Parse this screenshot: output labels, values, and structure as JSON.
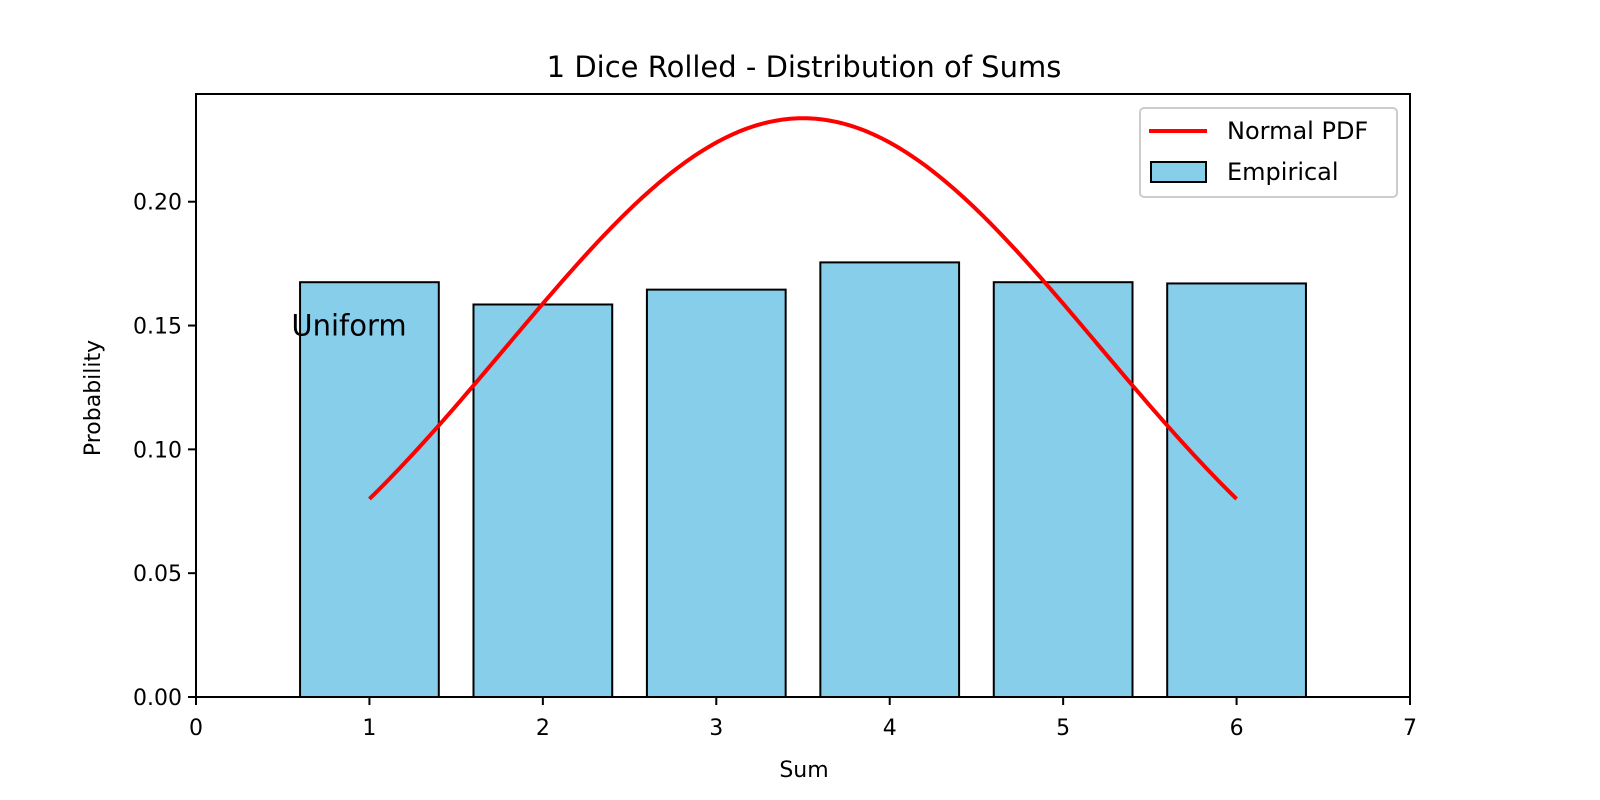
{
  "chart_data": {
    "type": "bar",
    "title": "1 Dice Rolled - Distribution of Sums",
    "xlabel": "Sum",
    "ylabel": "Probability",
    "xlim": [
      0,
      7
    ],
    "ylim": [
      0,
      0.2435
    ],
    "x_ticks": [
      0,
      1,
      2,
      3,
      4,
      5,
      6,
      7
    ],
    "y_ticks": [
      0.0,
      0.05,
      0.1,
      0.15,
      0.2
    ],
    "y_tick_labels": [
      "0.00",
      "0.05",
      "0.10",
      "0.15",
      "0.20"
    ],
    "grid": false,
    "legend_position": "top-right",
    "categories": [
      1,
      2,
      3,
      4,
      5,
      6
    ],
    "bar_width": 0.8,
    "series": [
      {
        "name": "Empirical",
        "type": "bar",
        "color": "#87ceeb",
        "edge_color": "#000000",
        "x": [
          1,
          2,
          3,
          4,
          5,
          6
        ],
        "values": [
          0.1675,
          0.1585,
          0.1645,
          0.1755,
          0.1675,
          0.167
        ]
      },
      {
        "name": "Normal PDF",
        "type": "line",
        "color": "#ff0000",
        "x_range": [
          1,
          6
        ],
        "mean": 3.5,
        "std": 1.707
      }
    ],
    "annotations": [
      {
        "text": "Uniform",
        "x": 0.55,
        "y": 0.15
      }
    ]
  }
}
